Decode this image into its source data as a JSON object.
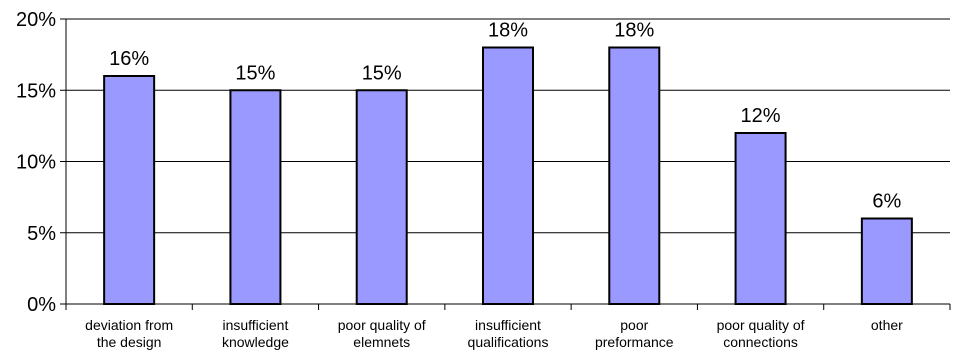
{
  "chart_data": {
    "type": "bar",
    "categories": [
      [
        "deviation from",
        "the design"
      ],
      [
        "insufficient",
        "knowledge"
      ],
      [
        "poor quality of",
        "elemnets"
      ],
      [
        "insufficient",
        "qualifications"
      ],
      [
        "poor",
        "preformance"
      ],
      [
        "poor quality of",
        "connections"
      ],
      [
        "other"
      ]
    ],
    "values": [
      16,
      15,
      15,
      18,
      18,
      12,
      6
    ],
    "data_labels": [
      "16%",
      "15%",
      "15%",
      "18%",
      "18%",
      "12%",
      "6%"
    ],
    "y_ticks": [
      0,
      5,
      10,
      15,
      20
    ],
    "y_tick_labels": [
      "0%",
      "5%",
      "10%",
      "15%",
      "20%"
    ],
    "ylim": [
      0,
      20
    ],
    "grid": true,
    "legend": "none",
    "colors": {
      "bar_fill": "#9999ff",
      "bar_stroke": "#000000",
      "grid": "#000000",
      "axis": "#000000"
    }
  }
}
